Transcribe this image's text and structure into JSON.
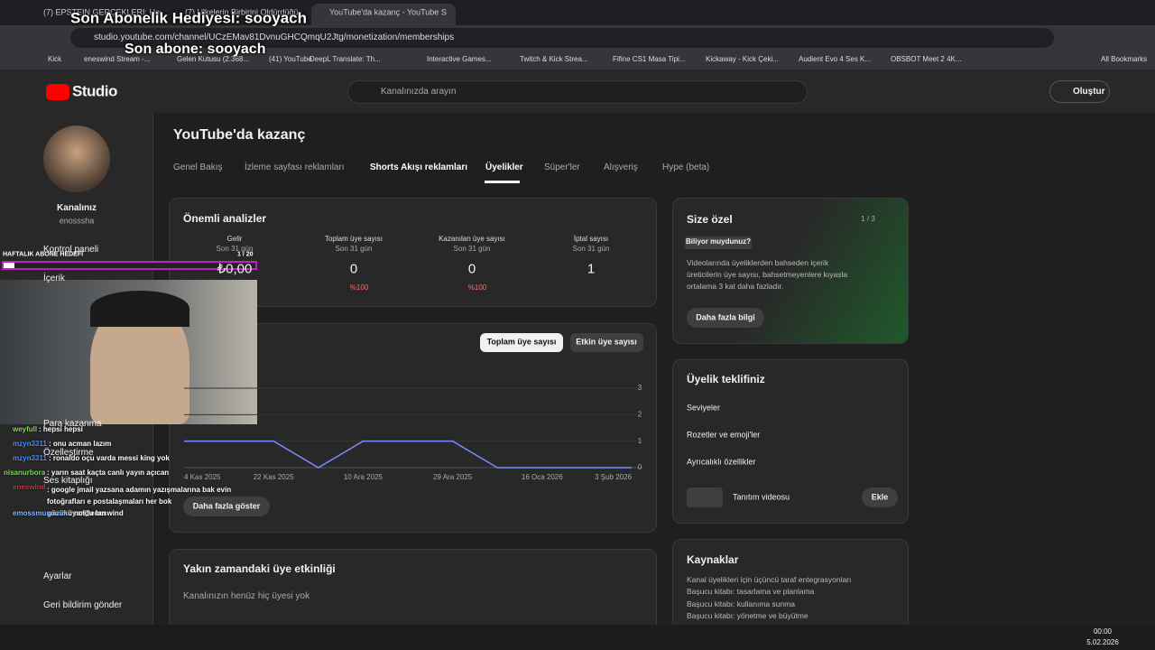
{
  "browser": {
    "tabs": [
      "(7) EPSTEIN GERÇEKLERİ: Her ...",
      "(7) Ülkelerin Birbirini Öldürdüğü...",
      "YouTube'da kazanç - YouTube S..."
    ],
    "url": "studio.youtube.com/channel/UCzEMav81DvnuGHCQmqU2Jtg/monetization/memberships",
    "bookmarks": [
      "Kick",
      "eneswind Stream -...",
      "Gelen Kutusu (2.368...",
      "(41) YouTube",
      "DeepL Translate: Th...",
      "Interactive Games...",
      "Twitch & Kick Strea...",
      "Fifine CS1 Masa Tipi...",
      "Kickaway - Kick Çeki...",
      "Audient Evo 4 Ses K...",
      "OBSBOT Meet 2 4K..."
    ],
    "all_bookmarks": "All Bookmarks"
  },
  "overlay": {
    "gift": "Son Abonelik Hediyesi: sooyach",
    "last_sub": "Son abone: sooyach",
    "goal_label": "HAFTALIK ABONE HEDEFİ",
    "goal_count": "1 / 20",
    "chat": [
      {
        "user": "weyfull",
        "text": ": hepsi hepsi"
      },
      {
        "user": "mzyn3311",
        "text": ": onu acman lazım"
      },
      {
        "user": "mzyn3311",
        "text": ": ronaldo oçu varda messi king yok"
      },
      {
        "user": "nisanurbora",
        "text": ": yarın saat kaçta canlı yayın açıcan"
      },
      {
        "user": "eneswind",
        "text": ": google jmail yazsana adamın yazışmalarına bak evin fotoğrafları e postalaşmaları her bok gözüküyor@eneswind"
      },
      {
        "user": "emossmusumm",
        "text": ": noldu lan"
      }
    ]
  },
  "header": {
    "logo": "Studio",
    "search": "Kanalınızda arayın",
    "create": "Oluştur"
  },
  "sidebar": {
    "channel": "Kanalınız",
    "handle": "enosssha",
    "items": [
      "Kontrol paneli",
      "İçerik",
      "Para kazanma",
      "Özelleştirme",
      "Ses kitaplığı"
    ],
    "bottom": [
      "Ayarlar",
      "Geri bildirim gönder"
    ]
  },
  "page": {
    "title": "YouTube'da kazanç",
    "tabs": [
      "Genel Bakış",
      "İzleme sayfası reklamları",
      "Shorts Akışı reklamları",
      "Üyelikler",
      "Süper'ler",
      "Alışveriş",
      "Hype (beta)"
    ]
  },
  "analytics": {
    "title": "Önemli analizler",
    "metrics": [
      {
        "label": "Gelir",
        "period": "Son 31 gün",
        "value": "₺0,00"
      },
      {
        "label": "Toplam üye sayısı",
        "period": "Son 31 gün",
        "value": 0,
        "change": "%100"
      },
      {
        "label": "Kazanılan üye sayısı",
        "period": "Son 31 gün",
        "value": 0,
        "change": "%100"
      },
      {
        "label": "İptal sayısı",
        "period": "Son 31 gün",
        "value": 1
      }
    ]
  },
  "chart_buttons": [
    "Toplam üye sayısı",
    "Etkin üye sayısı"
  ],
  "chart_more": "Daha fazla göster",
  "chart_data": {
    "type": "line",
    "categories": [
      "4 Kas 2025",
      null,
      "22 Kas 2025",
      null,
      "10 Ara 2025",
      null,
      "29 Ara 2025",
      null,
      "16 Oca 2026",
      null,
      "3 Şub 2026"
    ],
    "values": [
      1,
      1,
      1,
      0,
      1,
      1,
      1,
      0,
      0,
      0,
      0
    ],
    "color": "#7b8cff",
    "ylim": [
      0,
      3
    ],
    "yticks": [
      0,
      1,
      2,
      3
    ],
    "grid": true
  },
  "recent": {
    "title": "Yakın zamandaki üye etkinliği",
    "text": "Kanalınızın henüz hiç üyesi yok"
  },
  "for_you": {
    "title": "Size özel",
    "pager": "1 / 3",
    "badge": "Biliyor muydunuz?",
    "text": "Videolarında üyeliklerden bahseden içerik üreticilerin üye sayısı, bahsetmeyenlere kıyasla ortalama 3 kat daha fazladır.",
    "button": "Daha fazla bilgi"
  },
  "offer": {
    "title": "Üyelik teklifiniz",
    "rows": [
      "Seviyeler",
      "Rozetler ve emoji'ler",
      "Ayrıcalıklı özellikler"
    ],
    "video": "Tanıtım videosu",
    "add": "Ekle"
  },
  "resources": {
    "title": "Kaynaklar",
    "links": [
      "Kanal üyelikleri için üçüncü taraf entegrasyonları",
      "Başucu kitabı: tasarlama ve planlama",
      "Başucu kitabı: kullanıma sunma",
      "Başucu kitabı: yönetme ve büyütme"
    ]
  },
  "taskbar": {
    "time": "00:00",
    "date": "5.02.2026"
  }
}
